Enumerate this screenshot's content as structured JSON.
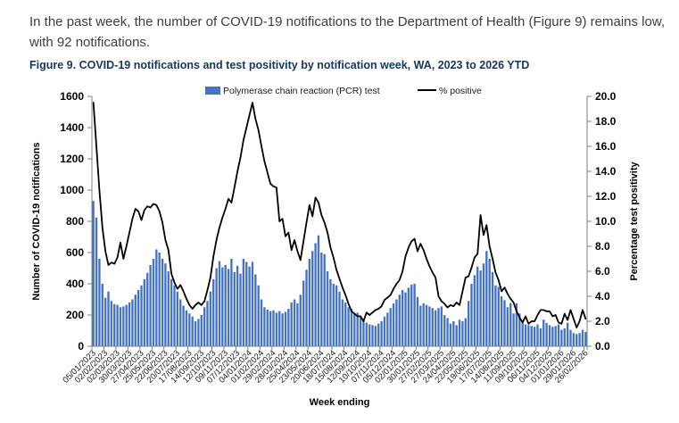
{
  "intro_text": "In the past week, the number of COVID-19 notifications to the Department of Health (Figure 9) remains low, with 92 notifications.",
  "figure_title": "Figure 9. COVID-19 notifications and test positivity by notification week, WA, 2023 to 2026 YTD",
  "colors": {
    "bar": "#4472C4",
    "line": "#000000",
    "axis": "#808080",
    "figure_title": "#17365D",
    "body_text": "#3D3D3D"
  },
  "chart_data": {
    "type": "bar+line combo",
    "xlabel": "Week ending",
    "grid": "off",
    "legend_position": "top-center",
    "legend": [
      {
        "label": "Polymerase chain reaction (PCR) test",
        "type": "bar"
      },
      {
        "label": "% positive",
        "type": "line"
      }
    ],
    "left_axis": {
      "label": "Number of COVID-19 notifications",
      "min": 0,
      "max": 1600,
      "step": 200
    },
    "right_axis": {
      "label": "Percentage test positivity",
      "min": 0,
      "max": 20,
      "step": 2
    },
    "x_tick_labels": [
      "05/01/2023",
      "02/02/2023",
      "02/03/2023",
      "30/03/2023",
      "27/04/2023",
      "25/05/2023",
      "22/06/2023",
      "20/07/2023",
      "17/08/2023",
      "14/09/2023",
      "12/10/2023",
      "09/11/2023",
      "07/12/2023",
      "04/01/2024",
      "01/02/2024",
      "29/02/2024",
      "28/03/2024",
      "25/04/2024",
      "23/05/2024",
      "20/06/2024",
      "18/07/2024",
      "15/08/2024",
      "12/09/2024",
      "10/10/2024",
      "07/11/2024",
      "05/12/2024",
      "02/01/2025",
      "30/01/2025",
      "27/02/2025",
      "27/03/2025",
      "24/04/2025",
      "22/05/2025",
      "19/06/2025",
      "17/07/2025",
      "14/08/2025",
      "11/09/2025",
      "09/10/2025",
      "06/11/2025",
      "04/12/2025",
      "01/01/2026",
      "29/01/2026",
      "26/02/2026"
    ],
    "x_tick_every_n_weeks": 4,
    "series": [
      {
        "name": "Polymerase chain reaction (PCR) test",
        "type": "bar",
        "axis": "left",
        "values": [
          930,
          825,
          560,
          400,
          310,
          350,
          290,
          270,
          265,
          250,
          255,
          265,
          280,
          300,
          330,
          360,
          390,
          430,
          470,
          520,
          560,
          620,
          600,
          560,
          530,
          480,
          430,
          390,
          350,
          300,
          260,
          230,
          210,
          190,
          160,
          175,
          200,
          250,
          290,
          350,
          430,
          500,
          545,
          505,
          520,
          495,
          560,
          475,
          515,
          465,
          560,
          540,
          510,
          540,
          460,
          390,
          300,
          250,
          235,
          225,
          230,
          215,
          225,
          210,
          220,
          240,
          280,
          300,
          275,
          330,
          420,
          490,
          560,
          610,
          660,
          710,
          600,
          590,
          480,
          430,
          400,
          390,
          350,
          300,
          280,
          250,
          240,
          210,
          215,
          185,
          165,
          150,
          140,
          135,
          130,
          145,
          160,
          190,
          215,
          245,
          275,
          300,
          330,
          360,
          345,
          375,
          395,
          400,
          315,
          260,
          275,
          265,
          255,
          245,
          230,
          245,
          255,
          200,
          180,
          145,
          160,
          135,
          170,
          160,
          180,
          290,
          400,
          455,
          510,
          485,
          530,
          610,
          560,
          475,
          390,
          380,
          320,
          295,
          250,
          275,
          210,
          275,
          210,
          155,
          140,
          135,
          130,
          125,
          140,
          115,
          170,
          150,
          135,
          125,
          130,
          140,
          105,
          115,
          150,
          105,
          85,
          78,
          85,
          105,
          92
        ]
      },
      {
        "name": "% positive",
        "type": "line",
        "axis": "right",
        "values": [
          19.5,
          16.0,
          12.5,
          9.5,
          7.6,
          6.5,
          6.7,
          6.6,
          7.1,
          8.3,
          7.0,
          8.0,
          9.1,
          10.2,
          11.0,
          10.8,
          10.1,
          10.9,
          11.2,
          11.1,
          11.4,
          11.3,
          10.8,
          9.9,
          8.5,
          7.7,
          5.8,
          5.1,
          4.6,
          4.9,
          4.4,
          3.8,
          3.3,
          3.0,
          3.3,
          3.5,
          3.3,
          3.6,
          4.5,
          5.5,
          7.2,
          8.5,
          9.5,
          10.3,
          11.0,
          11.8,
          11.5,
          12.7,
          14.0,
          15.1,
          16.5,
          17.5,
          18.5,
          19.5,
          18.2,
          17.3,
          16.0,
          14.8,
          13.9,
          13.0,
          12.8,
          12.7,
          10.0,
          10.2,
          8.8,
          9.1,
          7.7,
          8.5,
          7.6,
          6.9,
          8.4,
          9.9,
          11.3,
          10.4,
          11.9,
          11.5,
          10.5,
          9.9,
          9.1,
          7.9,
          7.1,
          6.1,
          5.4,
          4.7,
          4.1,
          3.4,
          2.8,
          2.6,
          2.4,
          2.4,
          2.0,
          2.7,
          2.5,
          2.7,
          2.9,
          3.0,
          3.2,
          3.7,
          3.9,
          4.1,
          4.6,
          5.0,
          5.3,
          6.0,
          7.2,
          7.9,
          8.4,
          8.6,
          7.6,
          8.2,
          7.7,
          7.0,
          6.4,
          5.9,
          5.5,
          4.0,
          3.6,
          3.4,
          3.1,
          3.3,
          3.2,
          3.5,
          3.3,
          4.4,
          5.5,
          5.6,
          6.3,
          7.1,
          7.4,
          10.5,
          8.9,
          9.7,
          8.0,
          7.0,
          5.9,
          5.3,
          4.4,
          4.7,
          4.2,
          3.8,
          3.5,
          2.8,
          2.3,
          1.9,
          2.4,
          1.8,
          2.0,
          2.0,
          2.5,
          2.9,
          2.9,
          2.8,
          2.8,
          2.4,
          2.5,
          1.9,
          1.8,
          2.6,
          2.1,
          2.9,
          2.2,
          1.5,
          2.0,
          2.9,
          2.2
        ]
      }
    ]
  }
}
